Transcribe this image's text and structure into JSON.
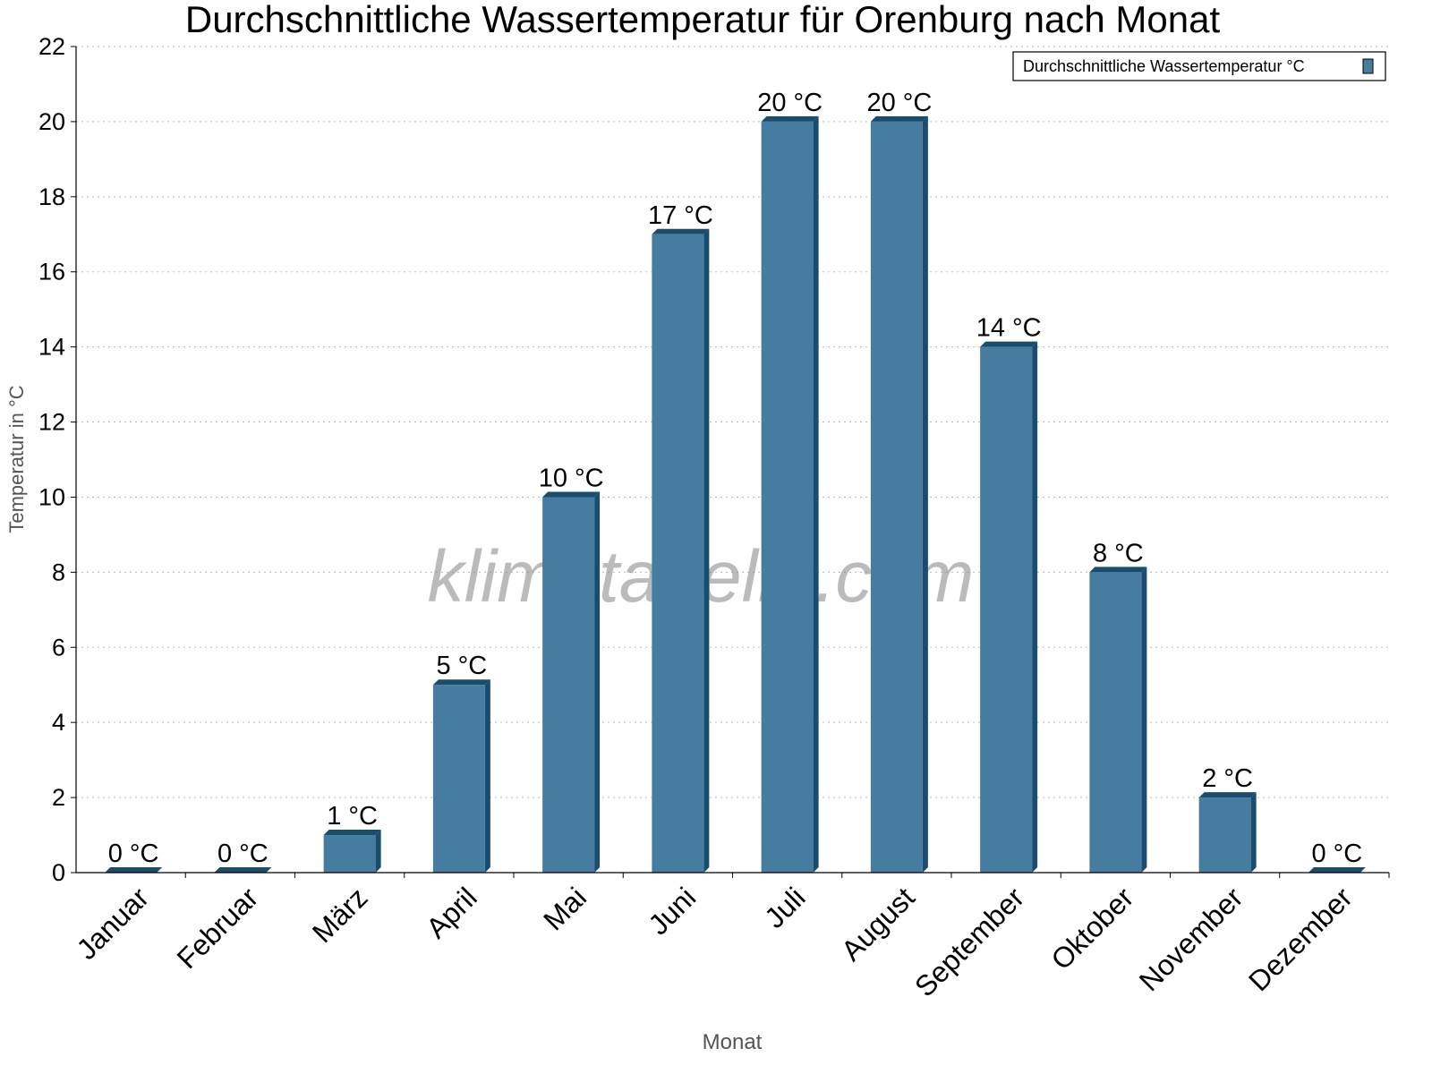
{
  "chart_data": {
    "type": "bar",
    "title": "Durchschnittliche Wassertemperatur für Orenburg nach Monat",
    "xlabel": "Monat",
    "ylabel": "Temperatur in °C",
    "categories": [
      "Januar",
      "Februar",
      "März",
      "April",
      "Mai",
      "Juni",
      "Juli",
      "August",
      "September",
      "Oktober",
      "November",
      "Dezember"
    ],
    "series": [
      {
        "name": "Durchschnittliche Wassertemperatur °C",
        "values": [
          0,
          0,
          1,
          5,
          10,
          17,
          20,
          20,
          14,
          8,
          2,
          0
        ]
      }
    ],
    "data_labels": [
      "0 °C",
      "0 °C",
      "1 °C",
      "5 °C",
      "10 °C",
      "17 °C",
      "20 °C",
      "20 °C",
      "14 °C",
      "8 °C",
      "2 °C",
      "0 °C"
    ],
    "ylim": [
      0,
      22
    ],
    "yticks": [
      0,
      2,
      4,
      6,
      8,
      10,
      12,
      14,
      16,
      18,
      20,
      22
    ],
    "grid": true,
    "legend_position": "top-right",
    "watermark": "klimatabelle.com",
    "colors": {
      "bar_front": "#467c9f",
      "bar_dark": "#1a4c6e",
      "grid": "#bbbbbb"
    }
  }
}
